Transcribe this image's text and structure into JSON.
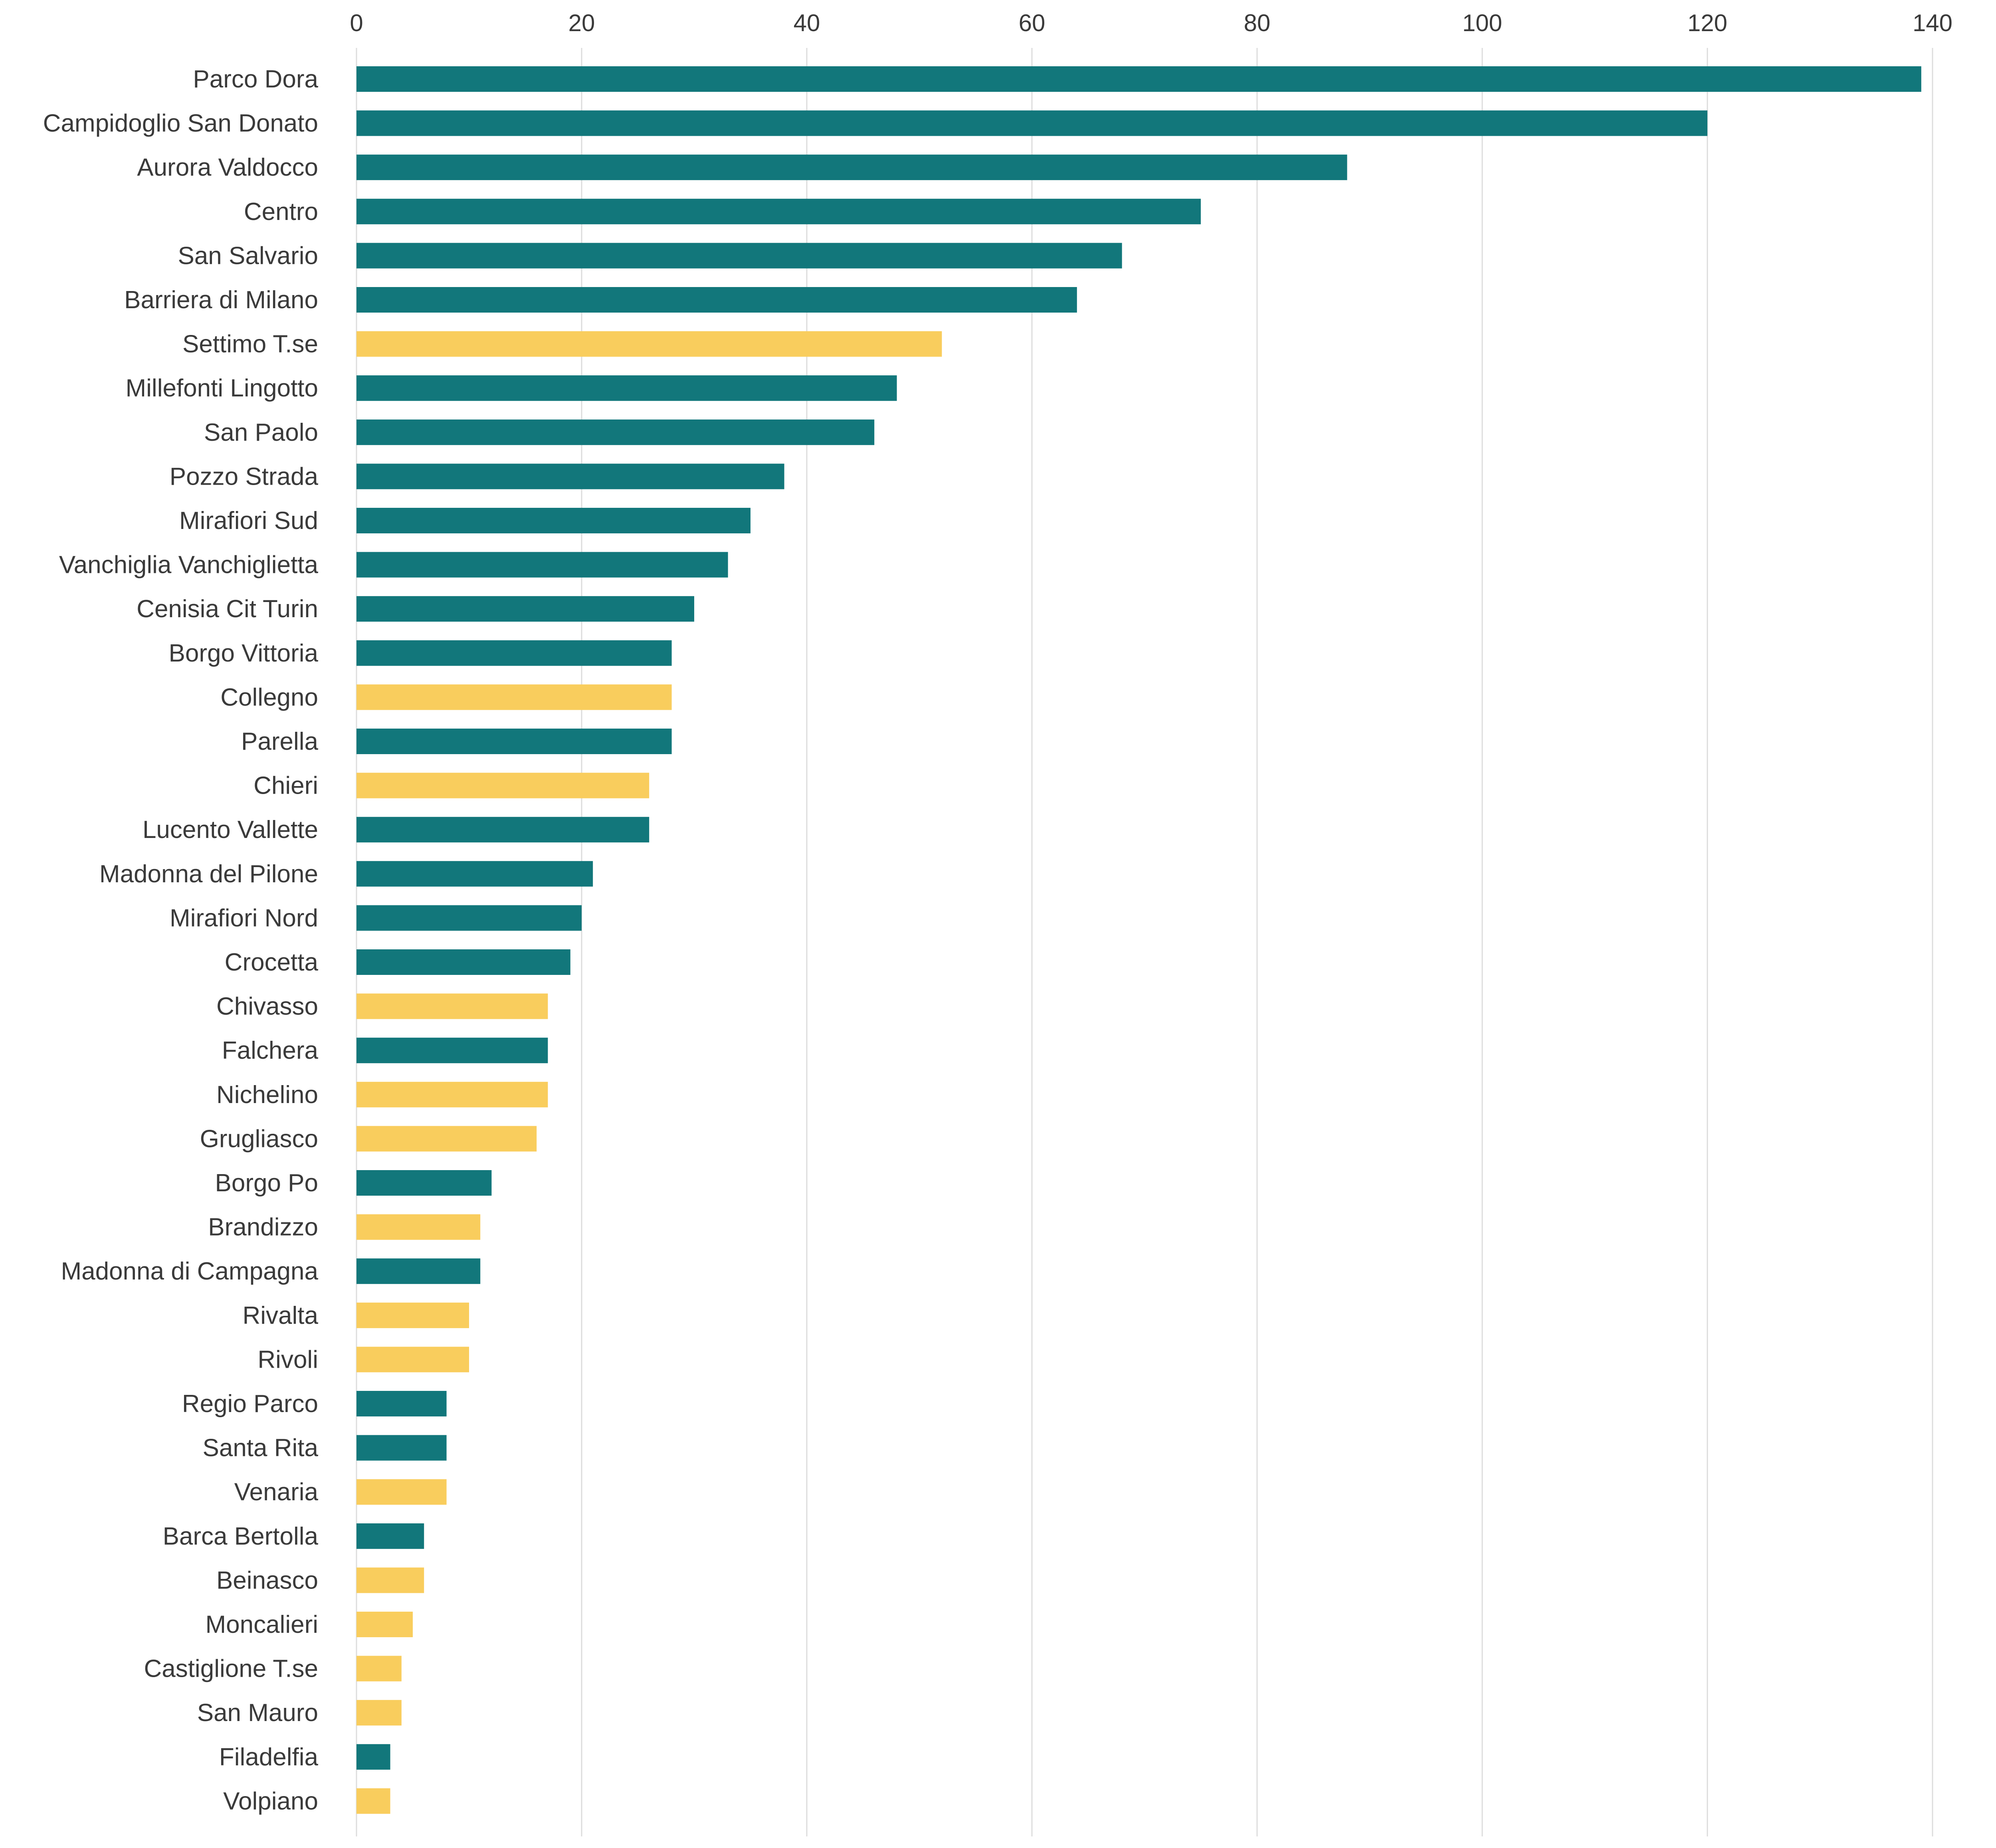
{
  "chart_data": {
    "type": "bar",
    "orientation": "horizontal",
    "title": "",
    "xlabel": "",
    "ylabel": "",
    "xlim": [
      0,
      140
    ],
    "x_ticks": [
      0,
      20,
      40,
      60,
      80,
      100,
      120,
      140
    ],
    "x_axis_position": "top",
    "grid": true,
    "legend": false,
    "colors": {
      "torino": "#12777b",
      "cintura": "#f9cd5d"
    },
    "categories": [
      "Parco Dora",
      "Campidoglio San Donato",
      "Aurora Valdocco",
      "Centro",
      "San Salvario",
      "Barriera di Milano",
      "Settimo T.se",
      "Millefonti Lingotto",
      "San Paolo",
      "Pozzo Strada",
      "Mirafiori Sud",
      "Vanchiglia Vanchiglietta",
      "Cenisia Cit Turin",
      "Borgo Vittoria",
      "Collegno",
      "Parella",
      "Chieri",
      "Lucento Vallette",
      "Madonna del Pilone",
      "Mirafiori Nord",
      "Crocetta",
      "Chivasso",
      "Falchera",
      "Nichelino",
      "Grugliasco",
      "Borgo Po",
      "Brandizzo",
      "Madonna di Campagna",
      "Rivalta",
      "Rivoli",
      "Regio Parco",
      "Santa Rita",
      "Venaria",
      "Barca Bertolla",
      "Beinasco",
      "Moncalieri",
      "Castiglione T.se",
      "San Mauro",
      "Filadelfia",
      "Volpiano"
    ],
    "values": [
      139,
      120,
      88,
      75,
      68,
      64,
      52,
      48,
      46,
      38,
      35,
      33,
      30,
      28,
      28,
      28,
      26,
      26,
      21,
      20,
      19,
      17,
      17,
      17,
      16,
      12,
      11,
      11,
      10,
      10,
      8,
      8,
      8,
      6,
      6,
      5,
      4,
      4,
      3,
      3
    ],
    "bar_groups": [
      "torino",
      "torino",
      "torino",
      "torino",
      "torino",
      "torino",
      "cintura",
      "torino",
      "torino",
      "torino",
      "torino",
      "torino",
      "torino",
      "torino",
      "cintura",
      "torino",
      "cintura",
      "torino",
      "torino",
      "torino",
      "torino",
      "cintura",
      "torino",
      "cintura",
      "cintura",
      "torino",
      "cintura",
      "torino",
      "cintura",
      "cintura",
      "torino",
      "torino",
      "cintura",
      "torino",
      "cintura",
      "cintura",
      "cintura",
      "cintura",
      "torino",
      "cintura"
    ]
  }
}
